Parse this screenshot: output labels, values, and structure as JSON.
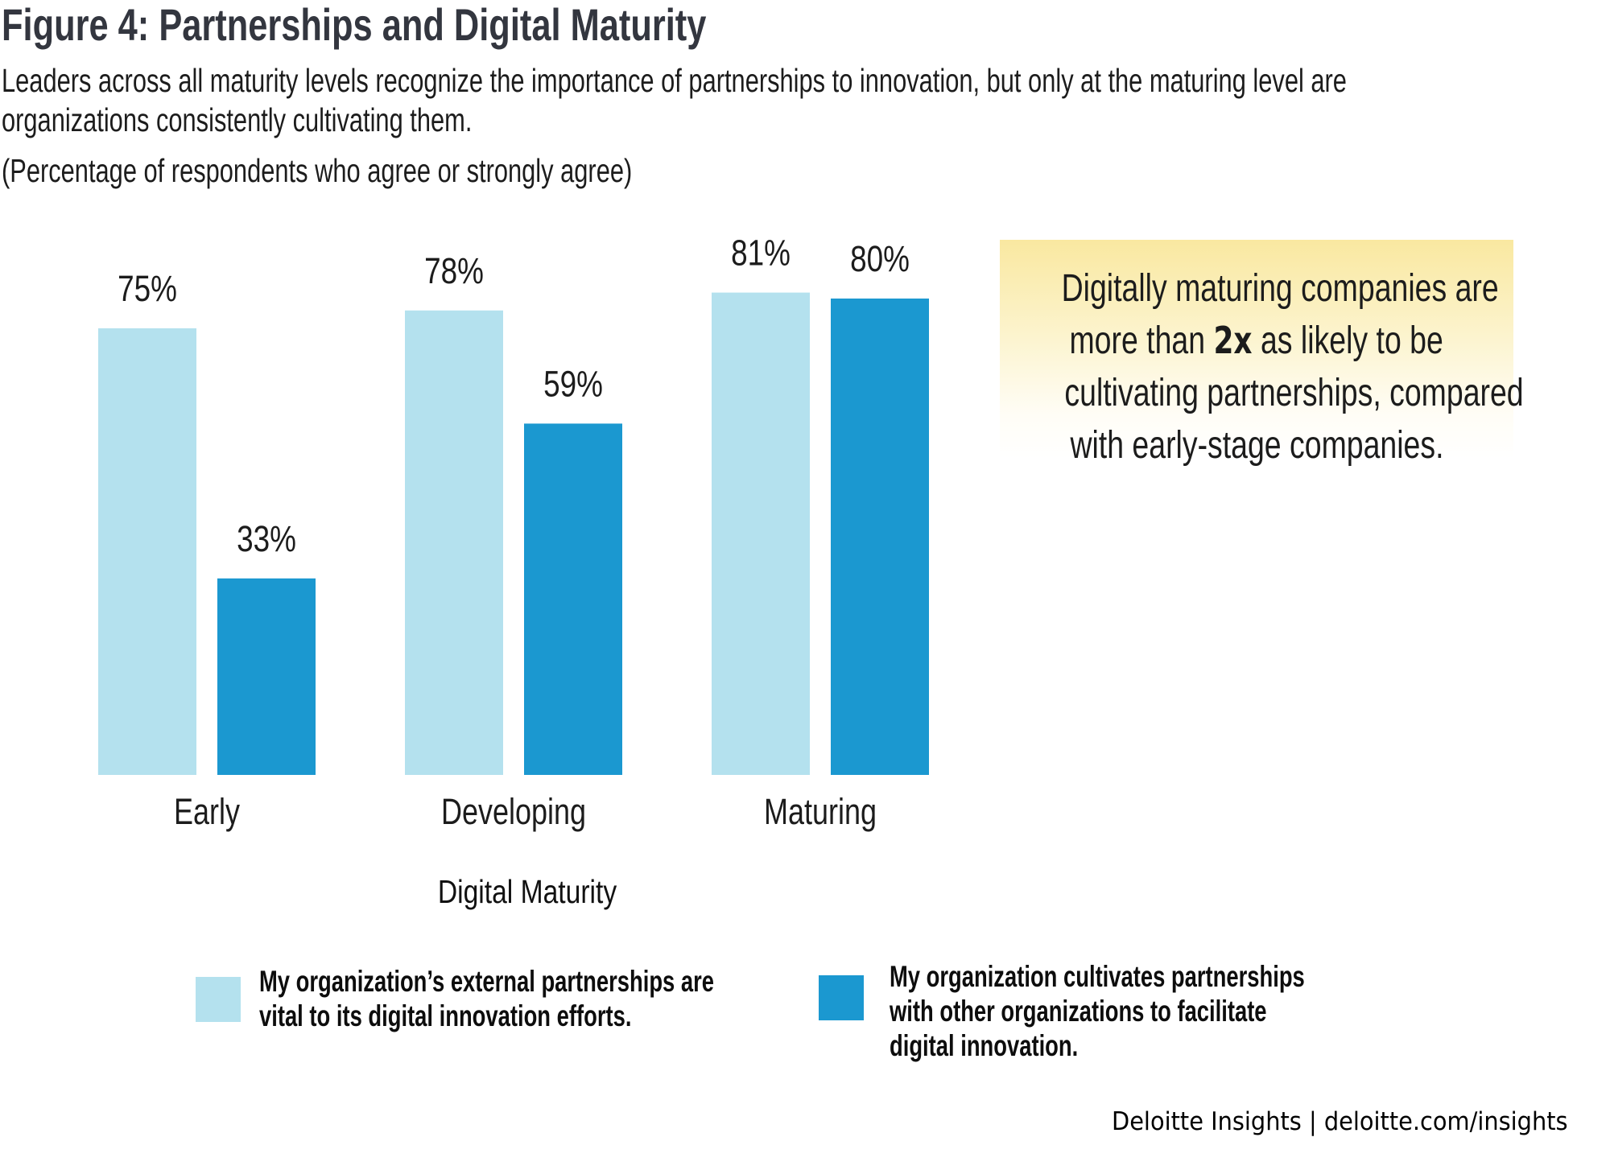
{
  "header": {
    "title": "Figure 4: Partnerships and Digital Maturity",
    "subtitle_line1": "Leaders across all maturity levels recognize the importance of partnerships to innovation, but only at the maturing level are",
    "subtitle_line2": "organizations consistently cultivating them.",
    "note": "(Percentage of respondents who agree or strongly agree)"
  },
  "callout": {
    "line1": "Digitally maturing companies are",
    "line2_pre": "more than ",
    "line2_em": "2x",
    "line2_post": " as likely to be",
    "line3": "cultivating partnerships, compared",
    "line4": "with early-stage companies.",
    "background_color": "#f9e8a0"
  },
  "legend": {
    "items": [
      {
        "line1": "My organization’s external partnerships are",
        "line2": "vital to its digital innovation efforts.",
        "line3": "",
        "color": "#b4e1ee"
      },
      {
        "line1": "My organization cultivates partnerships",
        "line2": "with other organizations to facilitate",
        "line3": "digital innovation.",
        "color": "#1b98d0"
      }
    ]
  },
  "footer": {
    "text": "Deloitte Insights | deloitte.com/insights"
  },
  "chart_data": {
    "type": "bar",
    "title": "Figure 4: Partnerships and Digital Maturity",
    "xlabel": "Digital Maturity",
    "ylabel": "",
    "ylim": [
      0,
      100
    ],
    "grid": false,
    "legend_position": "bottom",
    "categories": [
      "Early",
      "Developing",
      "Maturing"
    ],
    "series": [
      {
        "name": "My organization’s external partnerships are vital to its digital innovation efforts.",
        "color": "#b4e1ee",
        "values": [
          75,
          78,
          81
        ],
        "labels": [
          "75%",
          "78%",
          "81%"
        ]
      },
      {
        "name": "My organization cultivates partnerships with other organizations to facilitate digital innovation.",
        "color": "#1b98d0",
        "values": [
          33,
          59,
          80
        ],
        "labels": [
          "33%",
          "59%",
          "80%"
        ]
      }
    ]
  }
}
